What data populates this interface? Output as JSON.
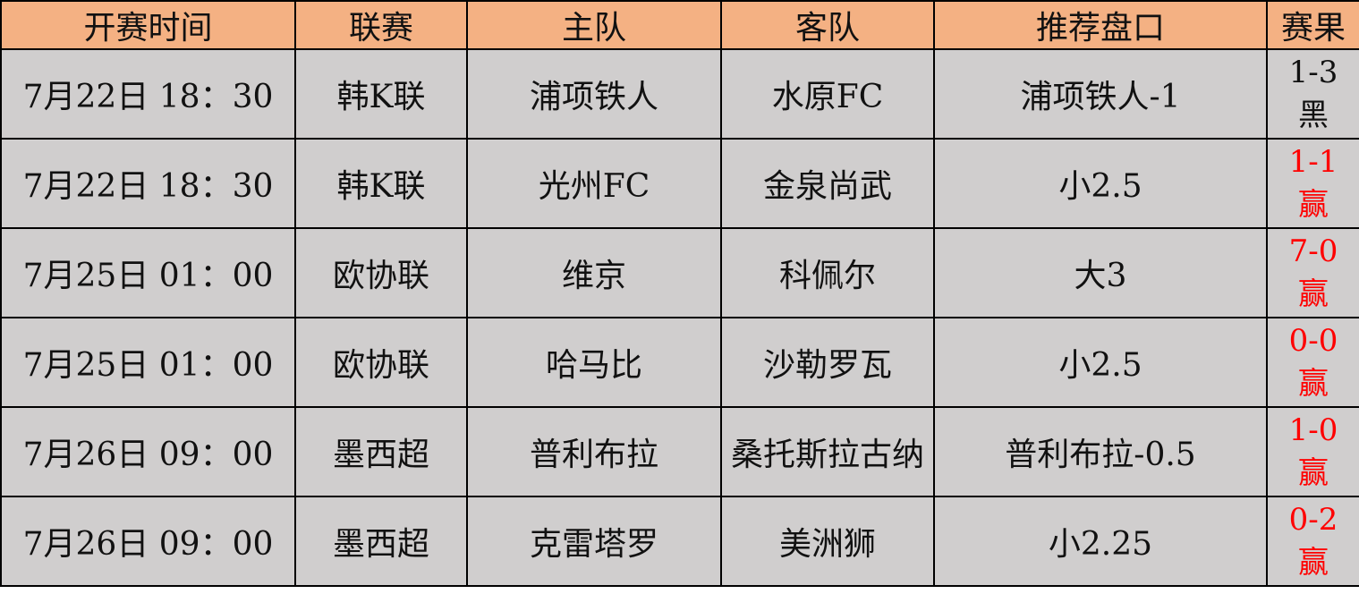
{
  "headers": [
    "开赛时间",
    "联赛",
    "主队",
    "客队",
    "推荐盘口",
    "赛果"
  ],
  "colors": {
    "header_bg": "#F4B183",
    "row_bg": "#D0CECE",
    "win_text": "#FF0000",
    "loss_text": "#111111"
  },
  "rows": [
    {
      "time": "7月22日 18：30",
      "league": "韩K联",
      "home": "浦项铁人",
      "away": "水原FC",
      "tip": "浦项铁人-1",
      "score": "1-3",
      "result": "黑",
      "win": false
    },
    {
      "time": "7月22日 18：30",
      "league": "韩K联",
      "home": "光州FC",
      "away": "金泉尚武",
      "tip": "小2.5",
      "score": "1-1",
      "result": "赢",
      "win": true
    },
    {
      "time": "7月25日 01：00",
      "league": "欧协联",
      "home": "维京",
      "away": "科佩尔",
      "tip": "大3",
      "score": "7-0",
      "result": "赢",
      "win": true
    },
    {
      "time": "7月25日 01：00",
      "league": "欧协联",
      "home": "哈马比",
      "away": "沙勒罗瓦",
      "tip": "小2.5",
      "score": "0-0",
      "result": "赢",
      "win": true
    },
    {
      "time": "7月26日 09：00",
      "league": "墨西超",
      "home": "普利布拉",
      "away": "桑托斯拉古纳",
      "tip": "普利布拉-0.5",
      "score": "1-0",
      "result": "赢",
      "win": true
    },
    {
      "time": "7月26日 09：00",
      "league": "墨西超",
      "home": "克雷塔罗",
      "away": "美洲狮",
      "tip": "小2.25",
      "score": "0-2",
      "result": "赢",
      "win": true
    }
  ]
}
